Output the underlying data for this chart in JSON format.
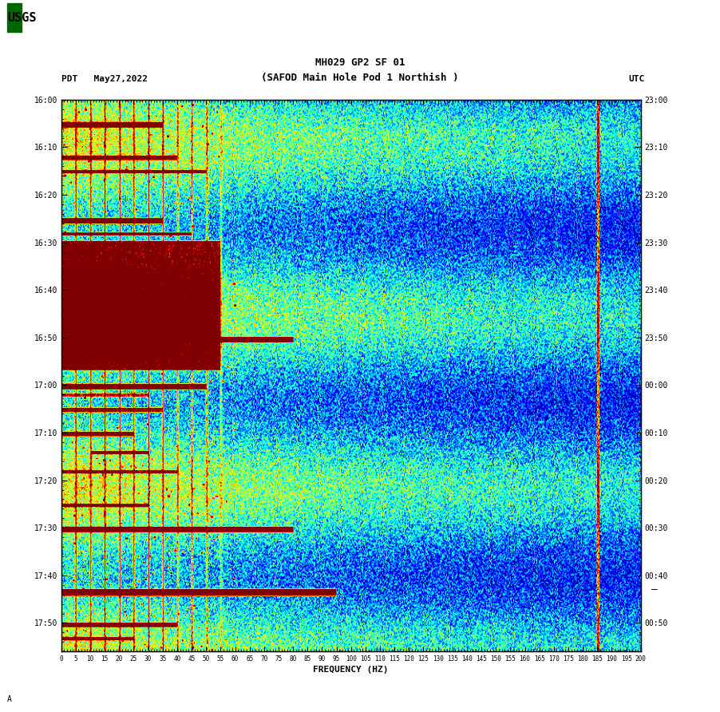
{
  "title_line1": "MH029 GP2 SF 01",
  "title_line2": "(SAFOD Main Hole Pod 1 Northish )",
  "left_label": "PDT   May27,2022",
  "right_label": "UTC",
  "xlabel": "FREQUENCY (HZ)",
  "freq_min": 0,
  "freq_max": 200,
  "pdt_ticks": [
    "16:00",
    "16:10",
    "16:20",
    "16:30",
    "16:40",
    "16:50",
    "17:00",
    "17:10",
    "17:20",
    "17:30",
    "17:40",
    "17:50"
  ],
  "utc_ticks": [
    "23:00",
    "23:10",
    "23:20",
    "23:30",
    "23:40",
    "23:50",
    "00:00",
    "00:10",
    "00:20",
    "00:30",
    "00:40",
    "00:50"
  ],
  "freq_ticks": [
    0,
    5,
    10,
    15,
    20,
    25,
    30,
    35,
    40,
    45,
    50,
    55,
    60,
    65,
    70,
    75,
    80,
    85,
    90,
    95,
    100,
    105,
    110,
    115,
    120,
    125,
    130,
    135,
    140,
    145,
    150,
    155,
    160,
    165,
    170,
    175,
    180,
    185,
    190,
    195,
    200
  ],
  "colormap": "jet",
  "figure_bg": "#ffffff",
  "seed": 42,
  "n_time": 460,
  "n_freq": 700,
  "total_minutes": 116
}
